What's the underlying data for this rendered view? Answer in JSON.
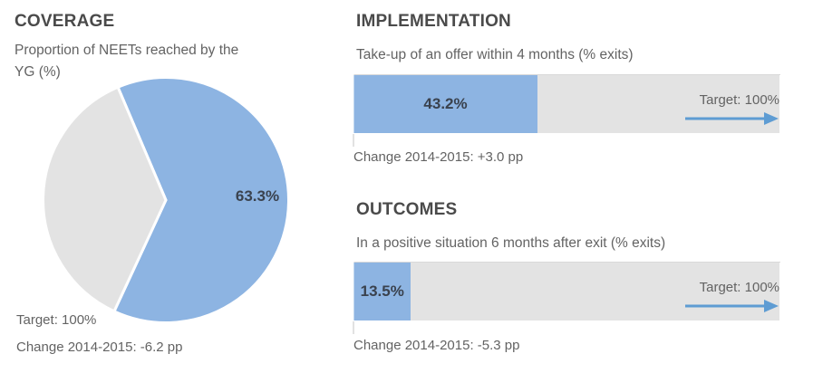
{
  "colors": {
    "bar_blue": "#8DB4E2",
    "track_gray": "#E3E3E3",
    "arrow_blue": "#5E9CD3",
    "title_gray": "#4A4A4A",
    "text_gray": "#636363",
    "data_label": "#3A424E"
  },
  "coverage": {
    "title": "COVERAGE",
    "subtitle": "Proportion of NEETs reached by the YG (%)",
    "subtitle_lines": [
      "Proportion of NEETs reached by the",
      "YG (%)"
    ],
    "value_label": "63.3%",
    "target_label": "Target: 100%",
    "change_label": "Change 2014-2015: -6.2 pp"
  },
  "implementation": {
    "title": "IMPLEMENTATION",
    "subtitle": "Take-up of an offer within 4 months (% exits)",
    "value_label": "43.2%",
    "target_label": "Target: 100%",
    "change_label": "Change 2014-2015: +3.0 pp"
  },
  "outcomes": {
    "title": "OUTCOMES",
    "subtitle": "In a positive situation 6 months after exit (% exits)",
    "value_label": "13.5%",
    "target_label": "Target: 100%",
    "change_label": "Change 2014-2015: -5.3 pp"
  },
  "chart_data": [
    {
      "type": "pie",
      "title": "COVERAGE",
      "subtitle": "Proportion of NEETs reached by the YG (%)",
      "slices": [
        {
          "name": "value",
          "value": 63.3,
          "color": "#8DB4E2",
          "data_label": "63.3%"
        },
        {
          "name": "remainder",
          "value": 36.7,
          "color": "#E3E3E3",
          "data_label": ""
        }
      ],
      "start_angle_deg": -23,
      "target_pct": 100,
      "change_pp": -6.2,
      "legend": "off"
    },
    {
      "type": "bar",
      "orientation": "horizontal",
      "title": "IMPLEMENTATION",
      "subtitle": "Take-up of an offer within 4 months (% exits)",
      "value": 43.2,
      "data_label": "43.2%",
      "axis_min": 0,
      "axis_max": 100,
      "grid_step": 20,
      "target_pct": 100,
      "change_pp": 3.0,
      "grid": "on"
    },
    {
      "type": "bar",
      "orientation": "horizontal",
      "title": "OUTCOMES",
      "subtitle": "In a positive situation 6 months after exit (% exits)",
      "value": 13.5,
      "data_label": "13.5%",
      "axis_min": 0,
      "axis_max": 100,
      "grid_step": 20,
      "target_pct": 100,
      "change_pp": -5.3,
      "grid": "on"
    }
  ]
}
